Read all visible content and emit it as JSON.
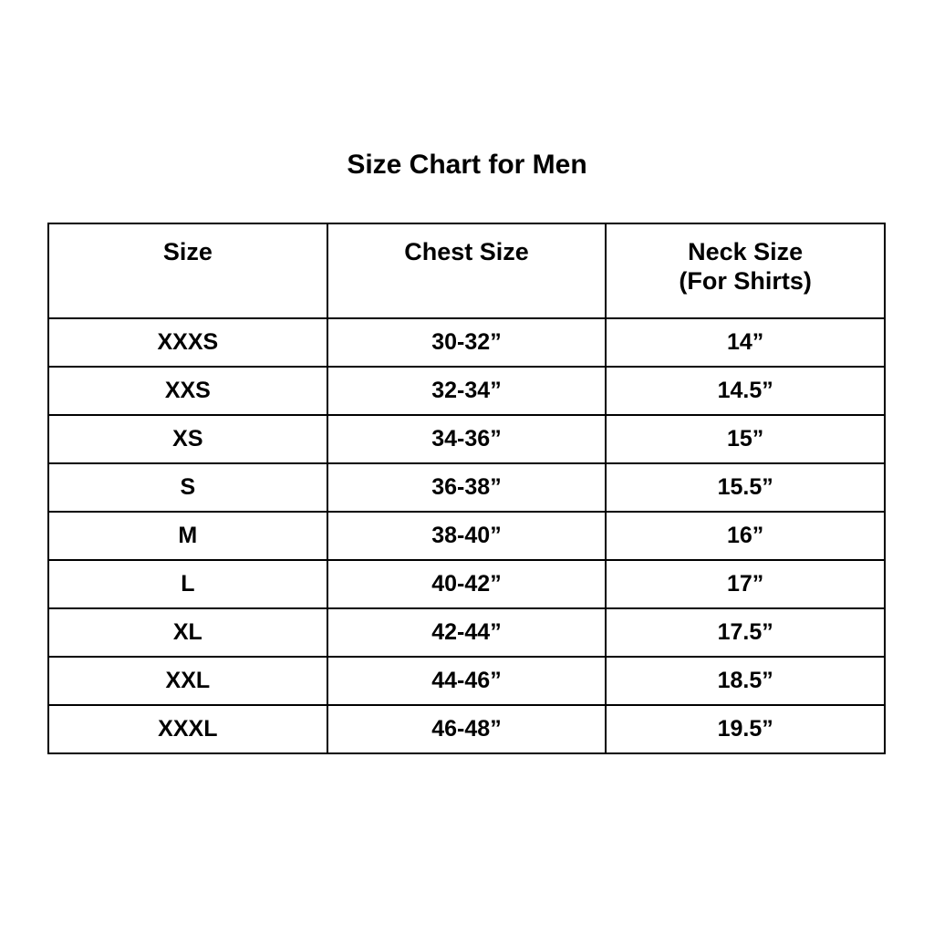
{
  "page": {
    "title": "Size Chart for Men"
  },
  "table": {
    "headers": [
      {
        "line1": "Size",
        "line2": ""
      },
      {
        "line1": "Chest Size",
        "line2": ""
      },
      {
        "line1": "Neck Size",
        "line2": "(For Shirts)"
      }
    ],
    "rows": [
      [
        "XXXS",
        "30-32”",
        "14”"
      ],
      [
        "XXS",
        "32-34”",
        "14.5”"
      ],
      [
        "XS",
        "34-36”",
        "15”"
      ],
      [
        "S",
        "36-38”",
        "15.5”"
      ],
      [
        "M",
        "38-40”",
        "16”"
      ],
      [
        "L",
        "40-42”",
        "17”"
      ],
      [
        "XL",
        "42-44”",
        "17.5”"
      ],
      [
        "XXL",
        "44-46”",
        "18.5”"
      ],
      [
        "XXXL",
        "46-48”",
        "19.5”"
      ]
    ]
  },
  "chart_data": {
    "type": "table",
    "title": "Size Chart for Men",
    "columns": [
      "Size",
      "Chest Size",
      "Neck Size (For Shirts)"
    ],
    "rows": [
      [
        "XXXS",
        "30-32”",
        "14”"
      ],
      [
        "XXS",
        "32-34”",
        "14.5”"
      ],
      [
        "XS",
        "34-36”",
        "15”"
      ],
      [
        "S",
        "36-38”",
        "15.5”"
      ],
      [
        "M",
        "38-40”",
        "16”"
      ],
      [
        "L",
        "40-42”",
        "17”"
      ],
      [
        "XL",
        "42-44”",
        "17.5”"
      ],
      [
        "XXL",
        "44-46”",
        "18.5”"
      ],
      [
        "XXXL",
        "46-48”",
        "19.5”"
      ]
    ],
    "layout": {
      "text_color": "#000000",
      "background_color": "#ffffff",
      "border_color": "#000000",
      "columns_equal_width": true,
      "header_rows": 1
    }
  }
}
